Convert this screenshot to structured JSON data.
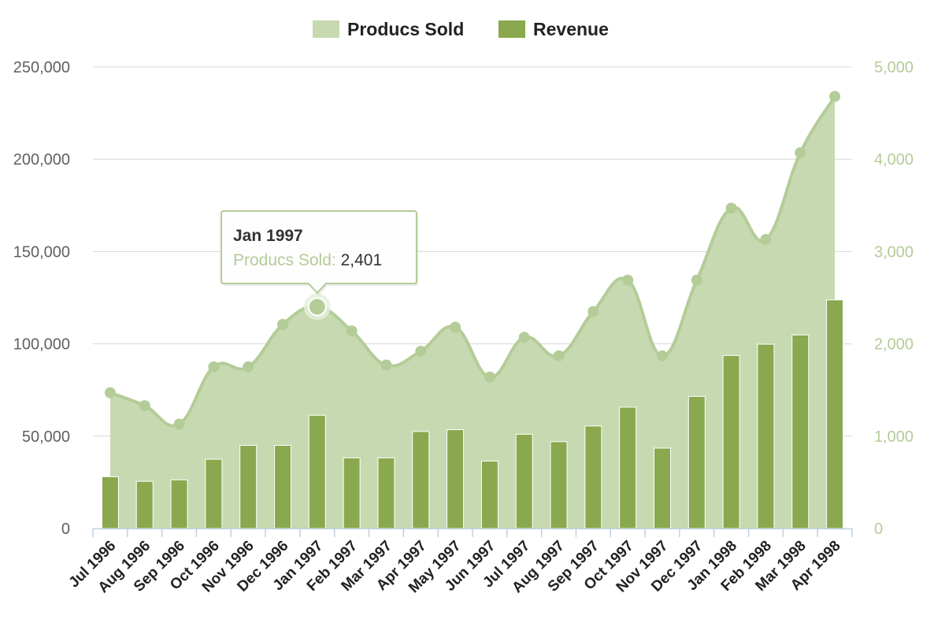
{
  "chart_data": {
    "type": "area",
    "categories": [
      "Jul 1996",
      "Aug 1996",
      "Sep 1996",
      "Oct 1996",
      "Nov 1996",
      "Dec 1996",
      "Jan 1997",
      "Feb 1997",
      "Mar 1997",
      "Apr 1997",
      "May 1997",
      "Jun 1997",
      "Jul 1997",
      "Aug 1997",
      "Sep 1997",
      "Oct 1997",
      "Nov 1997",
      "Dec 1997",
      "Jan 1998",
      "Feb 1998",
      "Mar 1998",
      "Apr 1998"
    ],
    "series": [
      {
        "name": "Producs Sold",
        "type": "area",
        "axis": "right",
        "color": "#b4cc98",
        "fill_color": "#c7d9b0",
        "values": [
          1470,
          1330,
          1130,
          1750,
          1750,
          2210,
          2401,
          2140,
          1770,
          1920,
          2180,
          1640,
          2070,
          1870,
          2350,
          2690,
          1870,
          2690,
          3470,
          3130,
          4070,
          4680
        ]
      },
      {
        "name": "Revenue",
        "type": "column",
        "axis": "left",
        "color": "#8aa84e",
        "values": [
          28000,
          25500,
          26300,
          37500,
          45000,
          45000,
          61300,
          38200,
          38200,
          52500,
          53500,
          36500,
          51000,
          47000,
          55500,
          65700,
          43500,
          71500,
          93700,
          99800,
          104800,
          123800
        ]
      }
    ],
    "y_left": {
      "min": 0,
      "max": 250000,
      "ticks": [
        "0",
        "50,000",
        "100,000",
        "150,000",
        "200,000",
        "250,000"
      ]
    },
    "y_right": {
      "min": 0,
      "max": 5000,
      "ticks": [
        "0",
        "1,000",
        "2,000",
        "3,000",
        "4,000",
        "5,000"
      ]
    },
    "grid": true,
    "legend_position": "top-center",
    "tooltip": {
      "title": "Jan 1997",
      "series_label": "Producs Sold:",
      "value": "2,401",
      "category_index": 6
    }
  }
}
